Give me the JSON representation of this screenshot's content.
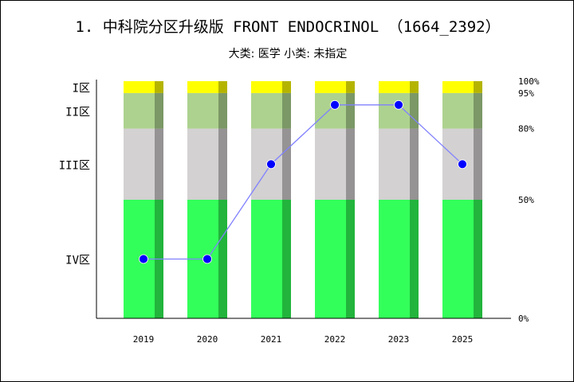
{
  "chart_data": {
    "type": "bar",
    "title": "1. 中科院分区升级版 FRONT ENDOCRINOL （1664_2392）",
    "subtitle": "大类: 医学 小类: 未指定",
    "categories": [
      "2019",
      "2020",
      "2021",
      "2022",
      "2023",
      "2025"
    ],
    "bands": [
      {
        "name": "IV区",
        "from": 0,
        "to": 50,
        "color": "#33ff5a",
        "shade": "#22b43c"
      },
      {
        "name": "III区",
        "from": 50,
        "to": 80,
        "color": "#d3d1d1",
        "shade": "#959393"
      },
      {
        "name": "II区",
        "from": 80,
        "to": 95,
        "color": "#add28f",
        "shade": "#7b9866"
      },
      {
        "name": "I区",
        "from": 95,
        "to": 100,
        "color": "#ffff00",
        "shade": "#b4b400"
      }
    ],
    "zone_labels": [
      "I区",
      "II区",
      "III区",
      "IV区"
    ],
    "right_ticks": [
      "100%",
      "95%",
      "80%",
      "50%",
      "0%"
    ],
    "right_tick_values": [
      100,
      95,
      80,
      50,
      0
    ],
    "line_values": [
      25,
      25,
      65,
      90,
      90,
      65
    ],
    "line_color": "#8080ff",
    "marker_color": "#0000ff",
    "ylim": [
      0,
      100
    ]
  }
}
